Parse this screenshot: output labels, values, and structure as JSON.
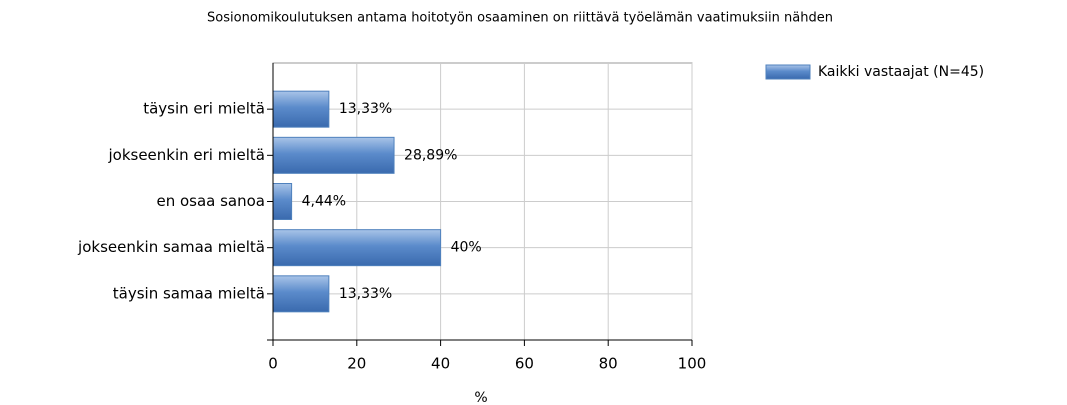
{
  "chart_data": {
    "type": "barh",
    "title": "Sosionomikoulutuksen antama hoitotyön osaaminen on riittävä työelämän vaatimuksiin nähden",
    "categories": [
      "täysin eri mieltä",
      "jokseenkin eri mieltä",
      "en osaa sanoa",
      "jokseenkin samaa mieltä",
      "täysin samaa mieltä"
    ],
    "series": [
      {
        "name": "Kaikki vastaajat (N=45)",
        "color": "#4f81bd",
        "values": [
          13.33,
          28.89,
          4.44,
          40,
          13.33
        ],
        "value_labels": [
          "13,33%",
          "28,89%",
          "4,44%",
          "40%",
          "13,33%"
        ]
      }
    ],
    "x_label": "%",
    "xlim": [
      0,
      100
    ],
    "xticks": [
      0,
      20,
      40,
      60,
      80,
      100
    ],
    "grid": true,
    "legend": "top-right"
  }
}
